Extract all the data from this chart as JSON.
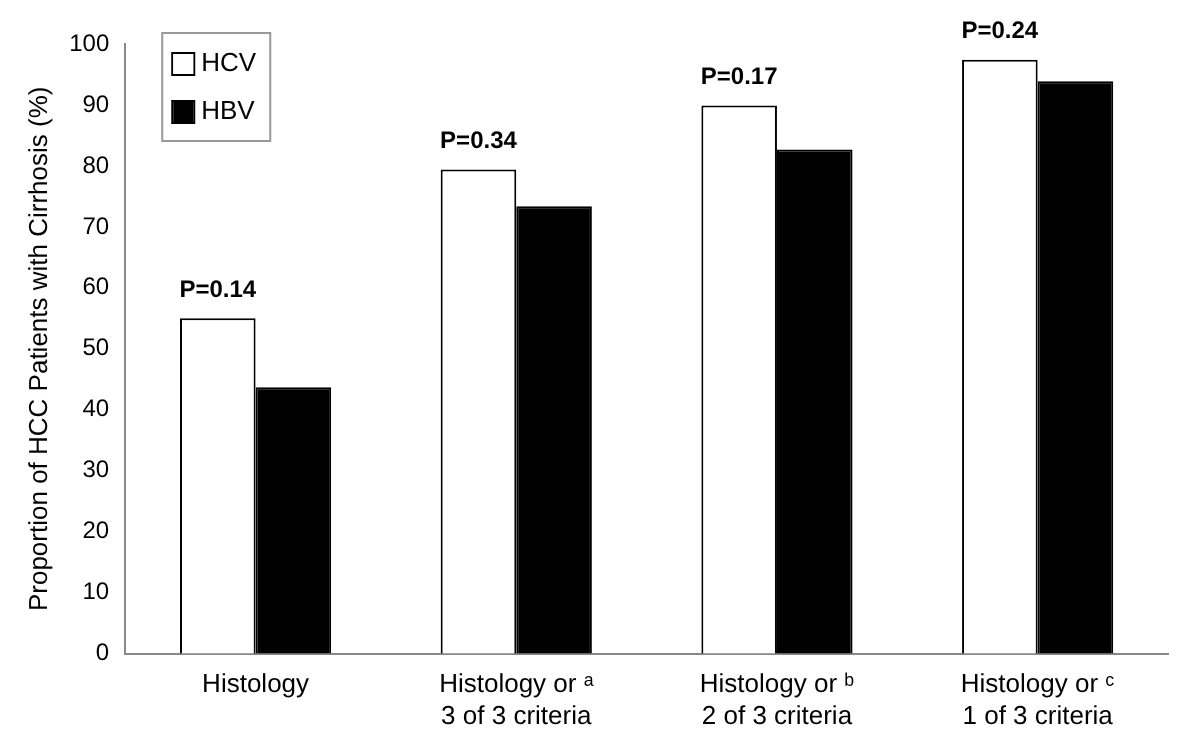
{
  "chart_data": {
    "type": "bar",
    "ylabel": "Proportion of HCC Patients with Cirrhosis (%)",
    "categories": [
      "Histology",
      "Histology or ᵃ\n3 of 3 criteria",
      "Histology or ᵇ\n2 of 3 criteria",
      "Histology or ᶜ\n1 of 3 criteria"
    ],
    "series": [
      {
        "name": "HCV",
        "color": "#ffffff",
        "values": [
          55,
          79.4,
          89.9,
          97.4
        ]
      },
      {
        "name": "HBV",
        "color": "#000000",
        "values": [
          43.7,
          73.4,
          82.7,
          93.9
        ]
      }
    ],
    "ylim": [
      0,
      100
    ],
    "yticks": [
      0,
      10,
      20,
      30,
      40,
      50,
      60,
      70,
      80,
      90,
      100
    ],
    "annotations": [
      {
        "text": "P=0.14",
        "x": "Histology",
        "y": 55
      },
      {
        "text": "P=0.34",
        "x": "Histology or ᵃ\n3 of 3 criteria",
        "y": 79.4
      },
      {
        "text": "P=0.17",
        "x": "Histology or ᵇ\n2 of 3 criteria",
        "y": 89.9
      },
      {
        "text": "P=0.24",
        "x": "Histology or ᶜ\n1 of 3 criteria",
        "y": 97.4
      }
    ],
    "grid": false,
    "legend": "top left"
  }
}
